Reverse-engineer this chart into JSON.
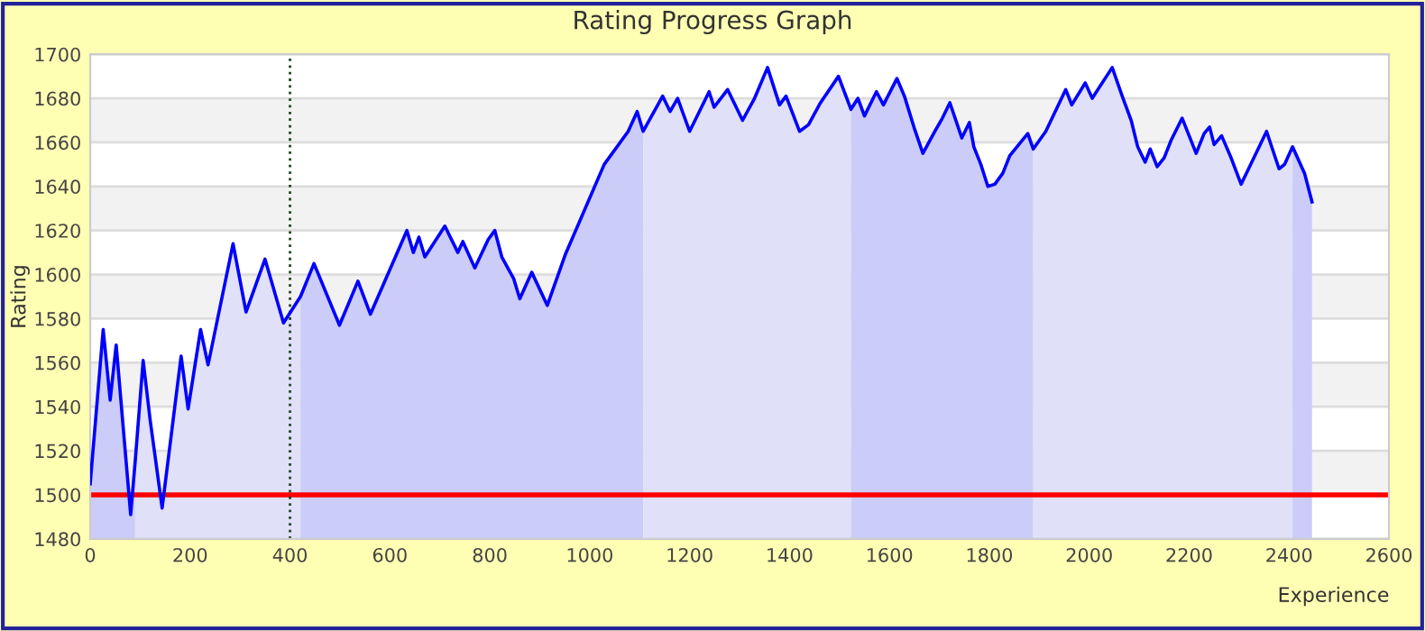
{
  "chart_data": {
    "type": "area",
    "title": "Rating Progress Graph",
    "xlabel": "Experience",
    "ylabel": "Rating",
    "xlim": [
      0,
      2600
    ],
    "xticks": [
      0,
      200,
      400,
      600,
      800,
      1000,
      1200,
      1400,
      1600,
      1800,
      2000,
      2200,
      2400,
      2600
    ],
    "ylim": [
      1480,
      1700
    ],
    "yticks": [
      1480,
      1500,
      1520,
      1540,
      1560,
      1580,
      1600,
      1620,
      1640,
      1660,
      1680,
      1700
    ],
    "grid": "y",
    "legend": false,
    "ref_lines": [
      {
        "axis": "y",
        "value": 1500,
        "color": "#ff0000",
        "line_style": "solid"
      },
      {
        "axis": "x",
        "value": 400,
        "color": "#224422",
        "line_style": "dotted"
      }
    ],
    "bands": [
      {
        "axis": "y",
        "from": 1500,
        "to": 1520,
        "color": "#f2f2f2"
      },
      {
        "axis": "y",
        "from": 1540,
        "to": 1560,
        "color": "#f2f2f2"
      },
      {
        "axis": "y",
        "from": 1580,
        "to": 1600,
        "color": "#f2f2f2"
      },
      {
        "axis": "y",
        "from": 1620,
        "to": 1640,
        "color": "#f2f2f2"
      },
      {
        "axis": "y",
        "from": 1660,
        "to": 1680,
        "color": "#f2f2f2"
      }
    ],
    "series": [
      {
        "color": "#ccccf8",
        "x": [
          0,
          26,
          40,
          52,
          81,
          90
        ],
        "values": [
          1505,
          1575,
          1543,
          1568,
          1491,
          1515
        ]
      },
      {
        "color": "#e0e0f8",
        "x": [
          90,
          106,
          120,
          144,
          182,
          196,
          221,
          236,
          286,
          312,
          350,
          387,
          421
        ],
        "values": [
          1515,
          1561,
          1534,
          1494,
          1563,
          1539,
          1575,
          1559,
          1614,
          1583,
          1607,
          1578,
          1590
        ]
      },
      {
        "color": "#ccccf8",
        "x": [
          421,
          448,
          499,
          536,
          561,
          634,
          647,
          658,
          670,
          710,
          736,
          746,
          770,
          797,
          810,
          824,
          848,
          860,
          884,
          915,
          951,
          1029,
          1077,
          1095,
          1107
        ],
        "values": [
          1590,
          1605,
          1577,
          1597,
          1582,
          1620,
          1610,
          1617,
          1608,
          1622,
          1610,
          1615,
          1603,
          1616,
          1620,
          1608,
          1598,
          1589,
          1601,
          1586,
          1609,
          1650,
          1665,
          1674,
          1665
        ]
      },
      {
        "color": "#e0e0f8",
        "x": [
          1107,
          1146,
          1161,
          1176,
          1200,
          1239,
          1249,
          1276,
          1306,
          1330,
          1356,
          1380,
          1393,
          1420,
          1438,
          1462,
          1498,
          1523
        ],
        "values": [
          1665,
          1681,
          1674,
          1680,
          1665,
          1683,
          1676,
          1684,
          1670,
          1680,
          1694,
          1677,
          1681,
          1665,
          1668,
          1678,
          1690,
          1675
        ]
      },
      {
        "color": "#ccccf8",
        "x": [
          1523,
          1537,
          1550,
          1574,
          1588,
          1615,
          1630,
          1649,
          1667,
          1691,
          1706,
          1721,
          1745,
          1760,
          1769,
          1783,
          1797,
          1811,
          1827,
          1841,
          1877,
          1888
        ],
        "values": [
          1675,
          1680,
          1672,
          1683,
          1677,
          1689,
          1681,
          1667,
          1655,
          1665,
          1671,
          1678,
          1662,
          1669,
          1658,
          1650,
          1640,
          1641,
          1646,
          1654,
          1664,
          1657
        ]
      },
      {
        "color": "#e0e0f8",
        "x": [
          1888,
          1913,
          1953,
          1965,
          1992,
          2006,
          2046,
          2066,
          2084,
          2097,
          2112,
          2122,
          2136,
          2150,
          2164,
          2186,
          2214,
          2230,
          2241,
          2250,
          2265,
          2284,
          2304,
          2319,
          2355,
          2380,
          2391,
          2407
        ],
        "values": [
          1657,
          1665,
          1684,
          1677,
          1687,
          1680,
          1694,
          1681,
          1670,
          1658,
          1651,
          1657,
          1649,
          1653,
          1661,
          1671,
          1655,
          1664,
          1667,
          1659,
          1663,
          1653,
          1641,
          1648,
          1665,
          1648,
          1650,
          1658
        ]
      },
      {
        "color": "#ccccf8",
        "x": [
          2407,
          2431,
          2446
        ],
        "values": [
          1658,
          1646,
          1633
        ]
      },
      {
        "type": "line",
        "color": "#0000ff",
        "x": [
          0,
          26,
          40,
          52,
          81,
          90,
          106,
          120,
          144,
          182,
          196,
          221,
          236,
          286,
          312,
          350,
          387,
          421,
          448,
          499,
          536,
          561,
          634,
          647,
          658,
          670,
          710,
          736,
          746,
          770,
          797,
          810,
          824,
          848,
          860,
          884,
          915,
          951,
          1029,
          1077,
          1095,
          1107,
          1146,
          1161,
          1176,
          1200,
          1239,
          1249,
          1276,
          1306,
          1330,
          1356,
          1380,
          1393,
          1420,
          1438,
          1462,
          1498,
          1523,
          1537,
          1550,
          1574,
          1588,
          1615,
          1630,
          1649,
          1667,
          1691,
          1706,
          1721,
          1745,
          1760,
          1769,
          1783,
          1797,
          1811,
          1827,
          1841,
          1877,
          1888,
          1913,
          1953,
          1965,
          1992,
          2006,
          2046,
          2066,
          2084,
          2097,
          2112,
          2122,
          2136,
          2150,
          2164,
          2186,
          2214,
          2230,
          2241,
          2250,
          2265,
          2284,
          2304,
          2319,
          2355,
          2380,
          2391,
          2407,
          2431,
          2446
        ],
        "values": [
          1505,
          1575,
          1543,
          1568,
          1491,
          1515,
          1561,
          1534,
          1494,
          1563,
          1539,
          1575,
          1559,
          1614,
          1583,
          1607,
          1578,
          1590,
          1605,
          1577,
          1597,
          1582,
          1620,
          1610,
          1617,
          1608,
          1622,
          1610,
          1615,
          1603,
          1616,
          1620,
          1608,
          1598,
          1589,
          1601,
          1586,
          1609,
          1650,
          1665,
          1674,
          1665,
          1681,
          1674,
          1680,
          1665,
          1683,
          1676,
          1684,
          1670,
          1680,
          1694,
          1677,
          1681,
          1665,
          1668,
          1678,
          1690,
          1675,
          1680,
          1672,
          1683,
          1677,
          1689,
          1681,
          1667,
          1655,
          1665,
          1671,
          1678,
          1662,
          1669,
          1658,
          1650,
          1640,
          1641,
          1646,
          1654,
          1664,
          1657,
          1665,
          1684,
          1677,
          1687,
          1680,
          1694,
          1681,
          1670,
          1658,
          1651,
          1657,
          1649,
          1653,
          1661,
          1671,
          1655,
          1664,
          1667,
          1659,
          1663,
          1653,
          1641,
          1648,
          1665,
          1648,
          1650,
          1658,
          1646,
          1633
        ]
      }
    ]
  }
}
